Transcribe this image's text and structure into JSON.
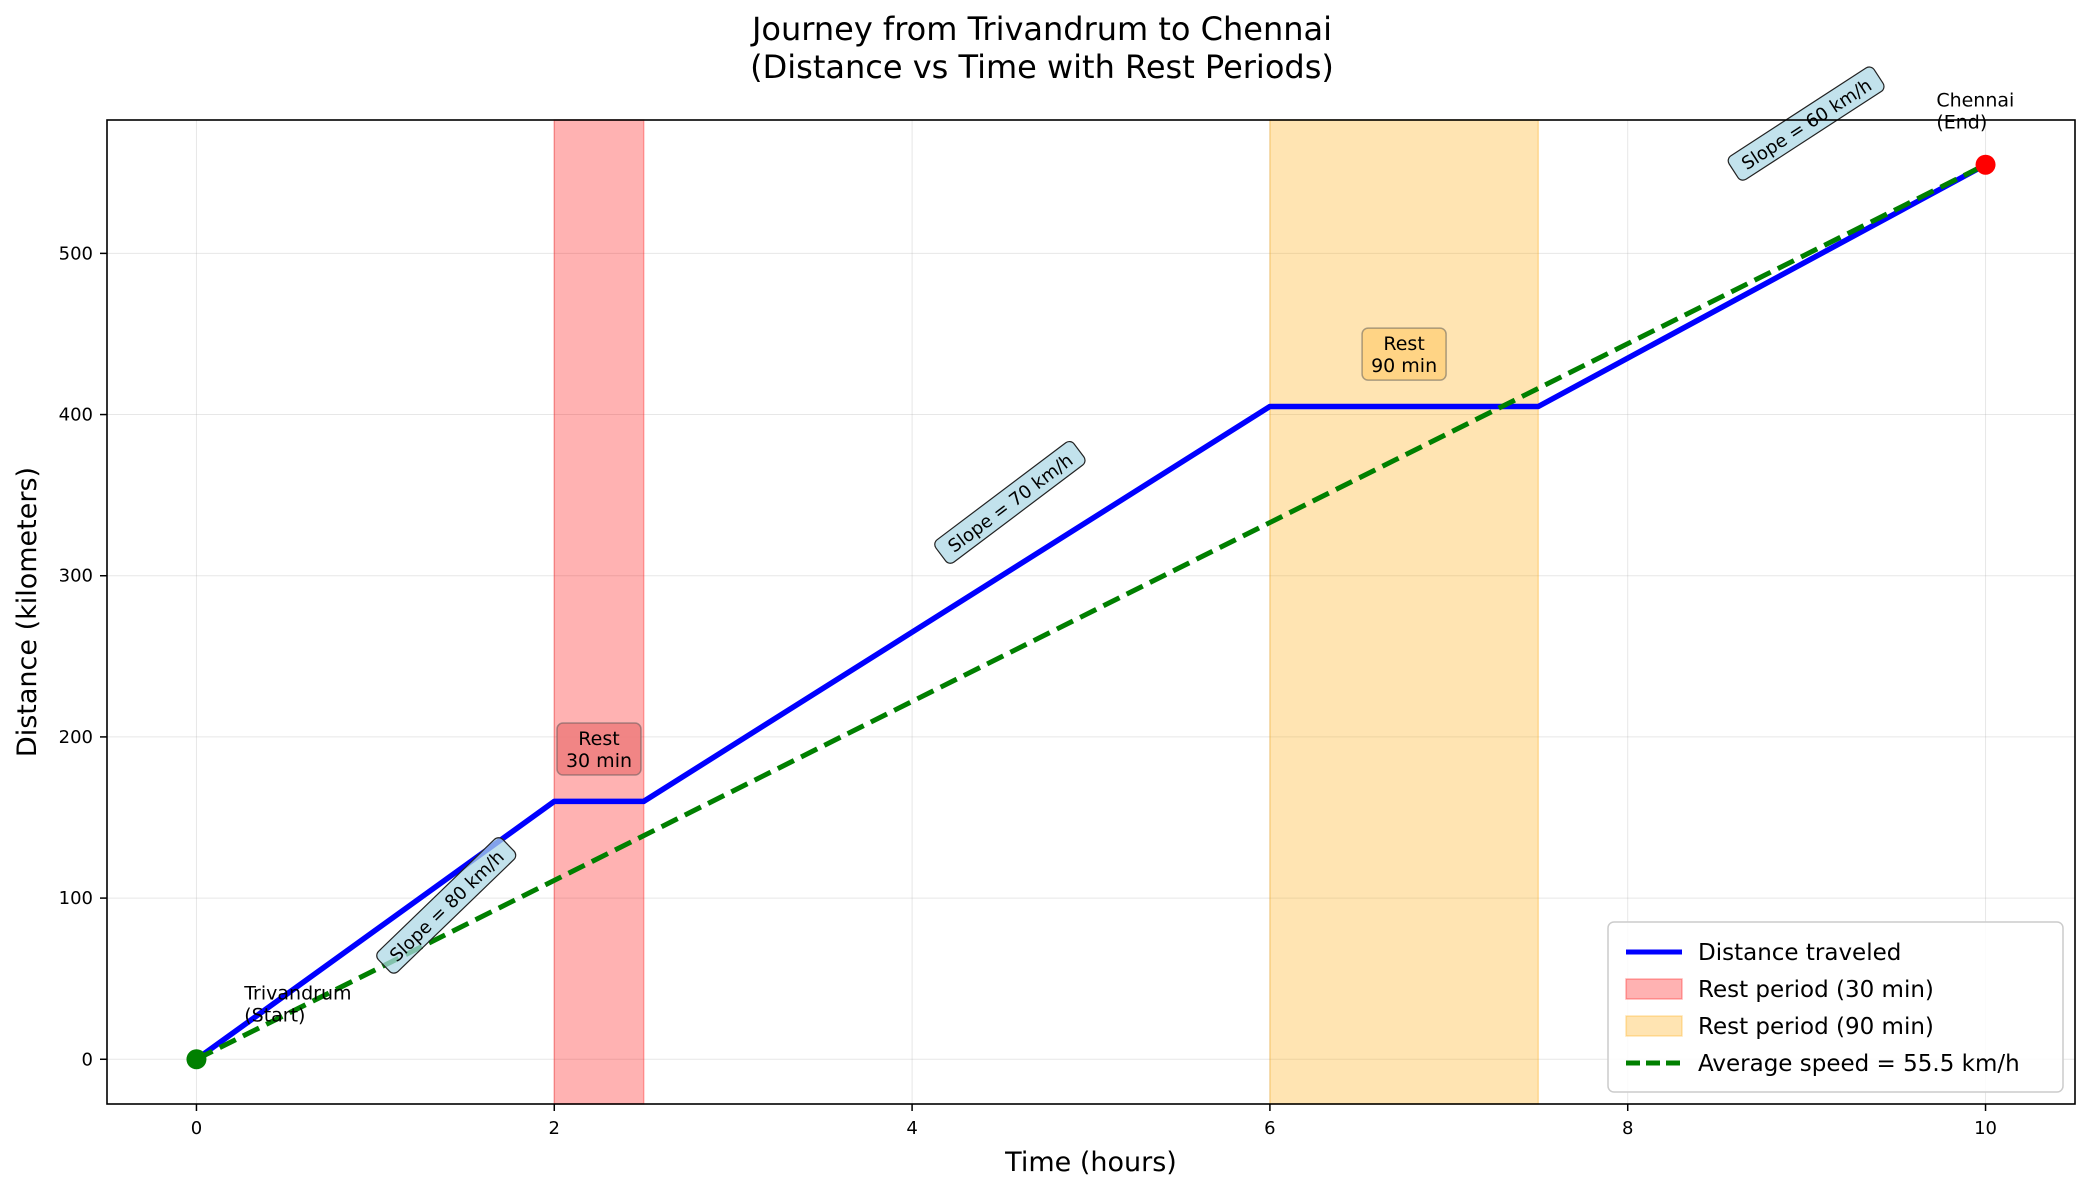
{
  "chart_data": {
    "type": "line",
    "title": "Journey from Trivandrum to Chennai",
    "subtitle": "(Distance vs Time with Rest Periods)",
    "xlabel": "Time (hours)",
    "ylabel": "Distance (kilometers)",
    "xlim": [
      -0.5,
      10.5
    ],
    "ylim": [
      -27.75,
      582.75
    ],
    "xticks": [
      0,
      2,
      4,
      6,
      8,
      10
    ],
    "yticks": [
      0,
      100,
      200,
      300,
      400,
      500
    ],
    "grid": true,
    "legend_position": "bottom-right",
    "series": [
      {
        "name": "Distance traveled",
        "color": "#0000ff",
        "style": "solid",
        "x": [
          0,
          2,
          2.5,
          6,
          7.5,
          10
        ],
        "y": [
          0,
          160,
          160,
          405,
          405,
          555
        ]
      },
      {
        "name": "Average speed = 55.5 km/h",
        "color": "#008000",
        "style": "dashed",
        "x": [
          0,
          10
        ],
        "y": [
          0,
          555
        ]
      }
    ],
    "rest_periods": [
      {
        "name": "Rest period (30 min)",
        "x_start": 2,
        "x_end": 2.5,
        "color": "#ff0000",
        "label": "Rest\n30 min",
        "label_x": 2.25,
        "label_y": 190,
        "label_box_color": "#f08080"
      },
      {
        "name": "Rest period (90 min)",
        "x_start": 6,
        "x_end": 7.5,
        "color": "#ffa500",
        "label": "Rest\n90 min",
        "label_x": 6.75,
        "label_y": 435,
        "label_box_color": "#ffd27f"
      }
    ],
    "points": [
      {
        "x": 0,
        "y": 0,
        "color": "#008000",
        "label": "Trivandrum\n(Start)"
      },
      {
        "x": 10,
        "y": 555,
        "color": "#ff0000",
        "label": "Chennai\n(End)"
      }
    ],
    "slope_labels": [
      {
        "text": "Slope = 80 km/h",
        "x": 1.4,
        "y": 95,
        "angle": -44
      },
      {
        "text": "Slope = 70 km/h",
        "x": 4.55,
        "y": 345,
        "angle": -37
      },
      {
        "text": "Slope = 60 km/h",
        "x": 9.0,
        "y": 580,
        "angle": -33
      }
    ],
    "slope_label_box_color": "#add8e6",
    "legend": [
      {
        "label": "Distance traveled",
        "kind": "line",
        "color": "#0000ff"
      },
      {
        "label": "Rest period (30 min)",
        "kind": "patch",
        "color": "#ff0000"
      },
      {
        "label": "Rest period (90 min)",
        "kind": "patch",
        "color": "#ffa500"
      },
      {
        "label": "Average speed = 55.5 km/h",
        "kind": "dashed",
        "color": "#008000"
      }
    ]
  }
}
